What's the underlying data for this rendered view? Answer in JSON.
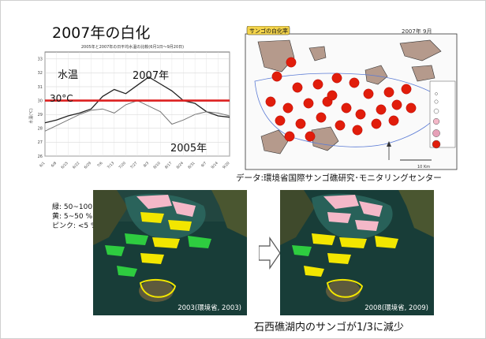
{
  "slide": {
    "title": "2007年の白化",
    "credit": "データ:環境省国際サンゴ礁研究･モニタリングセンター",
    "conclusion": "石西礁湖内のサンゴが1/3に減少"
  },
  "chart_data": {
    "type": "line",
    "title": "2005年と2007年の日平均水温の比較(6月1日～9月20日)",
    "xlabel": "",
    "ylabel": "水温(℃)",
    "x_tick_labels": [
      "6/1",
      "6/8",
      "6/15",
      "6/22",
      "6/29",
      "7/6",
      "7/13",
      "7/20",
      "7/27",
      "8/3",
      "8/10",
      "8/17",
      "8/24",
      "8/31",
      "9/7",
      "9/14",
      "9/20"
    ],
    "y_tick_labels": [
      "26",
      "27",
      "28",
      "29",
      "30",
      "31",
      "32",
      "33"
    ],
    "ylim": [
      26,
      33.5
    ],
    "x": [
      0,
      1,
      2,
      3,
      4,
      5,
      6,
      7,
      8,
      9,
      10,
      11,
      12,
      13,
      14,
      15,
      16
    ],
    "series": [
      {
        "name": "2007年",
        "values": [
          28.4,
          28.6,
          28.9,
          29.1,
          29.4,
          30.3,
          30.8,
          30.5,
          31.1,
          31.7,
          31.2,
          30.7,
          30.0,
          29.8,
          29.2,
          28.9,
          28.8
        ]
      },
      {
        "name": "2005年",
        "values": [
          27.8,
          28.2,
          28.6,
          29.0,
          29.3,
          29.4,
          29.1,
          29.7,
          30.0,
          29.6,
          29.2,
          28.3,
          28.6,
          29.0,
          29.2,
          29.1,
          28.9
        ]
      }
    ],
    "threshold": {
      "value": 30,
      "label": "30°C"
    },
    "annotations": [
      "水温",
      "2007年",
      "2005年"
    ],
    "grid": true,
    "colors": {
      "threshold": "#dd1f1f",
      "series_2007": "#222222",
      "series_2005": "#777777"
    }
  },
  "map": {
    "badge": "サンゴの白化率",
    "date": "2007年 9月",
    "scale_label": "10 Km",
    "marker_color": "#e11d0b"
  },
  "legend": {
    "lines": [
      "緑: 50~100 %",
      "黄: 5~50 %",
      "ピンク: <5 %"
    ],
    "colors": {
      "green": "#2ecc40",
      "yellow": "#f2e600",
      "pink": "#f4b8c8"
    }
  },
  "satellite": {
    "left_label": "2003(環境省, 2003)",
    "right_label": "2008(環境省, 2009)"
  }
}
